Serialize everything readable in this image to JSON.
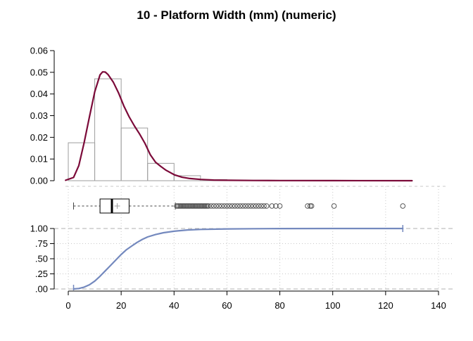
{
  "chart_data": {
    "type": "composite",
    "title": "10 - Platform Width (mm) (numeric)",
    "colors": {
      "histogram_border": "#9e9e9e",
      "density_line": "#7b0a39",
      "box": "#000000",
      "ecdf_line": "#7489be",
      "grid": "#c8c8c8",
      "axis": "#000000"
    },
    "x_axis": {
      "range": [
        0,
        140
      ],
      "ticks": [
        0,
        20,
        40,
        60,
        80,
        100,
        120,
        140
      ],
      "tick_labels": [
        "0",
        "20",
        "40",
        "60",
        "80",
        "100",
        "120",
        "140"
      ]
    },
    "histogram": {
      "bins": [
        {
          "x0": 0,
          "x1": 10,
          "density": 0.0175
        },
        {
          "x0": 10,
          "x1": 20,
          "density": 0.047
        },
        {
          "x0": 20,
          "x1": 30,
          "density": 0.0243
        },
        {
          "x0": 30,
          "x1": 40,
          "density": 0.008
        },
        {
          "x0": 40,
          "x1": 50,
          "density": 0.0023
        },
        {
          "x0": 50,
          "x1": 60,
          "density": 0.0005
        }
      ],
      "ylim": [
        0,
        0.06
      ],
      "y_ticks": [
        0,
        0.01,
        0.02,
        0.03,
        0.04,
        0.05,
        0.06
      ],
      "y_tick_labels": [
        "0.00",
        "0.01",
        "0.02",
        "0.03",
        "0.04",
        "0.05",
        "0.06"
      ]
    },
    "density": {
      "x": [
        -1,
        2,
        4,
        6,
        8,
        10,
        12,
        13,
        14,
        15,
        17,
        19,
        21,
        23,
        25,
        27,
        29,
        31,
        33,
        35,
        37,
        40,
        43,
        46,
        50,
        55,
        60,
        70,
        80,
        100,
        130
      ],
      "y": [
        0.0002,
        0.0015,
        0.007,
        0.0175,
        0.0295,
        0.041,
        0.0488,
        0.0502,
        0.0501,
        0.049,
        0.0455,
        0.0405,
        0.0345,
        0.0295,
        0.0253,
        0.0215,
        0.0172,
        0.012,
        0.0085,
        0.0066,
        0.0048,
        0.0028,
        0.0016,
        0.001,
        0.0006,
        0.0003,
        0.0002,
        0.0001,
        5e-05,
        2e-05,
        0.0
      ]
    },
    "boxplot": {
      "whisker_low": 2,
      "q1": 12,
      "median": 16.5,
      "q3": 23,
      "whisker_high": 40.5,
      "mean": 18.5,
      "outliers": [
        41,
        41.5,
        42,
        42.5,
        43,
        43.5,
        44,
        44.5,
        45,
        45.5,
        46,
        46.5,
        47,
        47.5,
        48,
        48.5,
        49,
        49.5,
        50,
        50.5,
        51,
        51.5,
        52,
        52.5,
        53,
        54,
        55,
        56,
        57,
        58,
        59,
        60,
        61,
        62,
        63,
        64,
        65,
        66,
        67,
        68,
        69,
        70,
        71,
        72,
        73,
        74,
        75,
        77,
        78.5,
        80,
        90.5,
        91.5,
        92,
        100.5,
        126.5
      ]
    },
    "ecdf": {
      "ylim": [
        0,
        1
      ],
      "y_ticks": [
        0,
        0.25,
        0.5,
        0.75,
        1.0
      ],
      "y_tick_labels": [
        ".00",
        ".25",
        ".50",
        ".75",
        "1.00"
      ],
      "x": [
        2,
        4,
        6,
        8,
        10,
        12,
        14,
        16,
        18,
        20,
        22,
        24,
        26,
        28,
        30,
        33,
        36,
        40,
        45,
        50,
        60,
        70,
        80,
        100,
        126.5
      ],
      "y": [
        0.0,
        0.008,
        0.03,
        0.07,
        0.13,
        0.21,
        0.3,
        0.39,
        0.48,
        0.57,
        0.65,
        0.71,
        0.77,
        0.82,
        0.86,
        0.9,
        0.93,
        0.955,
        0.975,
        0.985,
        0.993,
        0.997,
        0.999,
        0.9997,
        1.0
      ],
      "min_marker": 2,
      "max_marker": 126.5
    }
  }
}
